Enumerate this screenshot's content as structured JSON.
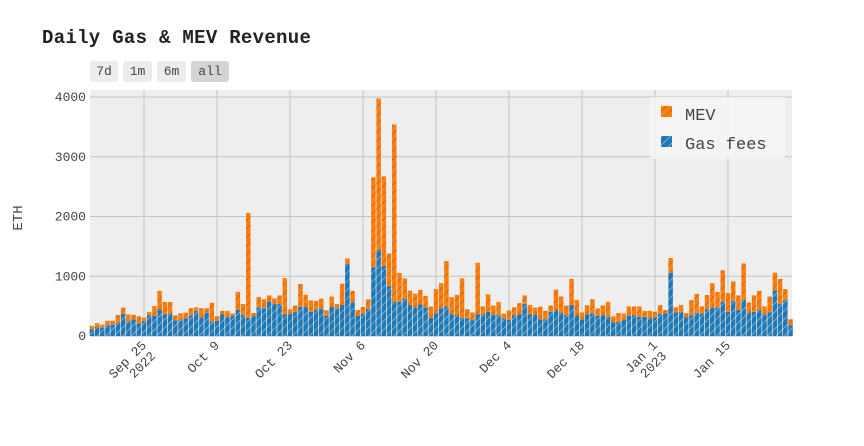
{
  "chart_data": {
    "type": "bar",
    "stacked": true,
    "title": "Daily Gas & MEV Revenue",
    "xlabel": "",
    "ylabel": "ETH",
    "ylim": [
      0,
      4120
    ],
    "yticks": [
      "0",
      "1000",
      "2000",
      "3000",
      "4000"
    ],
    "ytick_values": [
      0,
      1000,
      2000,
      3000,
      4000
    ],
    "x_start": "2022-09-15",
    "x_end": "2023-01-27",
    "xticks": [
      {
        "date": "2022-09-25",
        "label": "Sep 25",
        "sub": "2022"
      },
      {
        "date": "2022-10-09",
        "label": "Oct 9",
        "sub": ""
      },
      {
        "date": "2022-10-23",
        "label": "Oct 23",
        "sub": ""
      },
      {
        "date": "2022-11-06",
        "label": "Nov 6",
        "sub": ""
      },
      {
        "date": "2022-11-20",
        "label": "Nov 20",
        "sub": ""
      },
      {
        "date": "2022-12-04",
        "label": "Dec 4",
        "sub": ""
      },
      {
        "date": "2022-12-18",
        "label": "Dec 18",
        "sub": ""
      },
      {
        "date": "2023-01-01",
        "label": "Jan 1",
        "sub": "2023"
      },
      {
        "date": "2023-01-15",
        "label": "Jan 15",
        "sub": ""
      }
    ],
    "grid": true,
    "legend_position": "top-right",
    "series": [
      {
        "name": "Gas fees",
        "color": "#1f77b4",
        "values": [
          110,
          150,
          140,
          180,
          190,
          220,
          370,
          240,
          280,
          210,
          250,
          350,
          335,
          445,
          360,
          375,
          260,
          265,
          295,
          345,
          420,
          310,
          390,
          245,
          255,
          360,
          310,
          340,
          440,
          350,
          305,
          335,
          480,
          465,
          570,
          540,
          535,
          360,
          375,
          400,
          490,
          485,
          405,
          445,
          450,
          335,
          490,
          465,
          520,
          1210,
          565,
          340,
          375,
          450,
          1150,
          1440,
          1170,
          835,
          575,
          575,
          630,
          520,
          475,
          530,
          475,
          305,
          380,
          465,
          495,
          360,
          350,
          305,
          295,
          265,
          360,
          360,
          405,
          350,
          350,
          295,
          270,
          350,
          360,
          540,
          360,
          360,
          280,
          280,
          405,
          435,
          385,
          350,
          520,
          350,
          280,
          360,
          380,
          340,
          350,
          320,
          225,
          235,
          275,
          340,
          350,
          320,
          320,
          300,
          310,
          370,
          380,
          1060,
          395,
          405,
          310,
          350,
          390,
          375,
          450,
          480,
          480,
          575,
          405,
          590,
          435,
          605,
          395,
          405,
          435,
          350,
          395,
          765,
          535,
          605,
          180
        ]
      },
      {
        "name": "MEV",
        "color": "#ff7f0e",
        "values": [
          60,
          65,
          50,
          75,
          65,
          130,
          105,
          120,
          75,
          120,
          60,
          50,
          165,
          310,
          210,
          195,
          85,
          115,
          95,
          120,
          60,
          155,
          75,
          310,
          75,
          60,
          110,
          35,
          300,
          185,
          1755,
          50,
          175,
          150,
          110,
          90,
          145,
          610,
          70,
          110,
          380,
          205,
          190,
          145,
          175,
          95,
          170,
          70,
          355,
          90,
          190,
          95,
          110,
          165,
          1505,
          2535,
          1500,
          545,
          2965,
          480,
          335,
          240,
          235,
          240,
          195,
          185,
          405,
          420,
          760,
          290,
          340,
          660,
          155,
          130,
          865,
          135,
          290,
          160,
          220,
          80,
          160,
          130,
          190,
          140,
          160,
          115,
          210,
          140,
          105,
          340,
          275,
          160,
          435,
          255,
          115,
          155,
          235,
          120,
          160,
          250,
          105,
          150,
          100,
          155,
          145,
          175,
          100,
          120,
          95,
          145,
          55,
          245,
          85,
          115,
          70,
          250,
          315,
          120,
          235,
          405,
          255,
          525,
          315,
          325,
          245,
          610,
          165,
          275,
          320,
          145,
          265,
          295,
          420,
          180,
          100
        ]
      }
    ]
  },
  "range_selector": [
    {
      "label": "7d",
      "active": false
    },
    {
      "label": "1m",
      "active": false
    },
    {
      "label": "6m",
      "active": false
    },
    {
      "label": "all",
      "active": true
    }
  ]
}
